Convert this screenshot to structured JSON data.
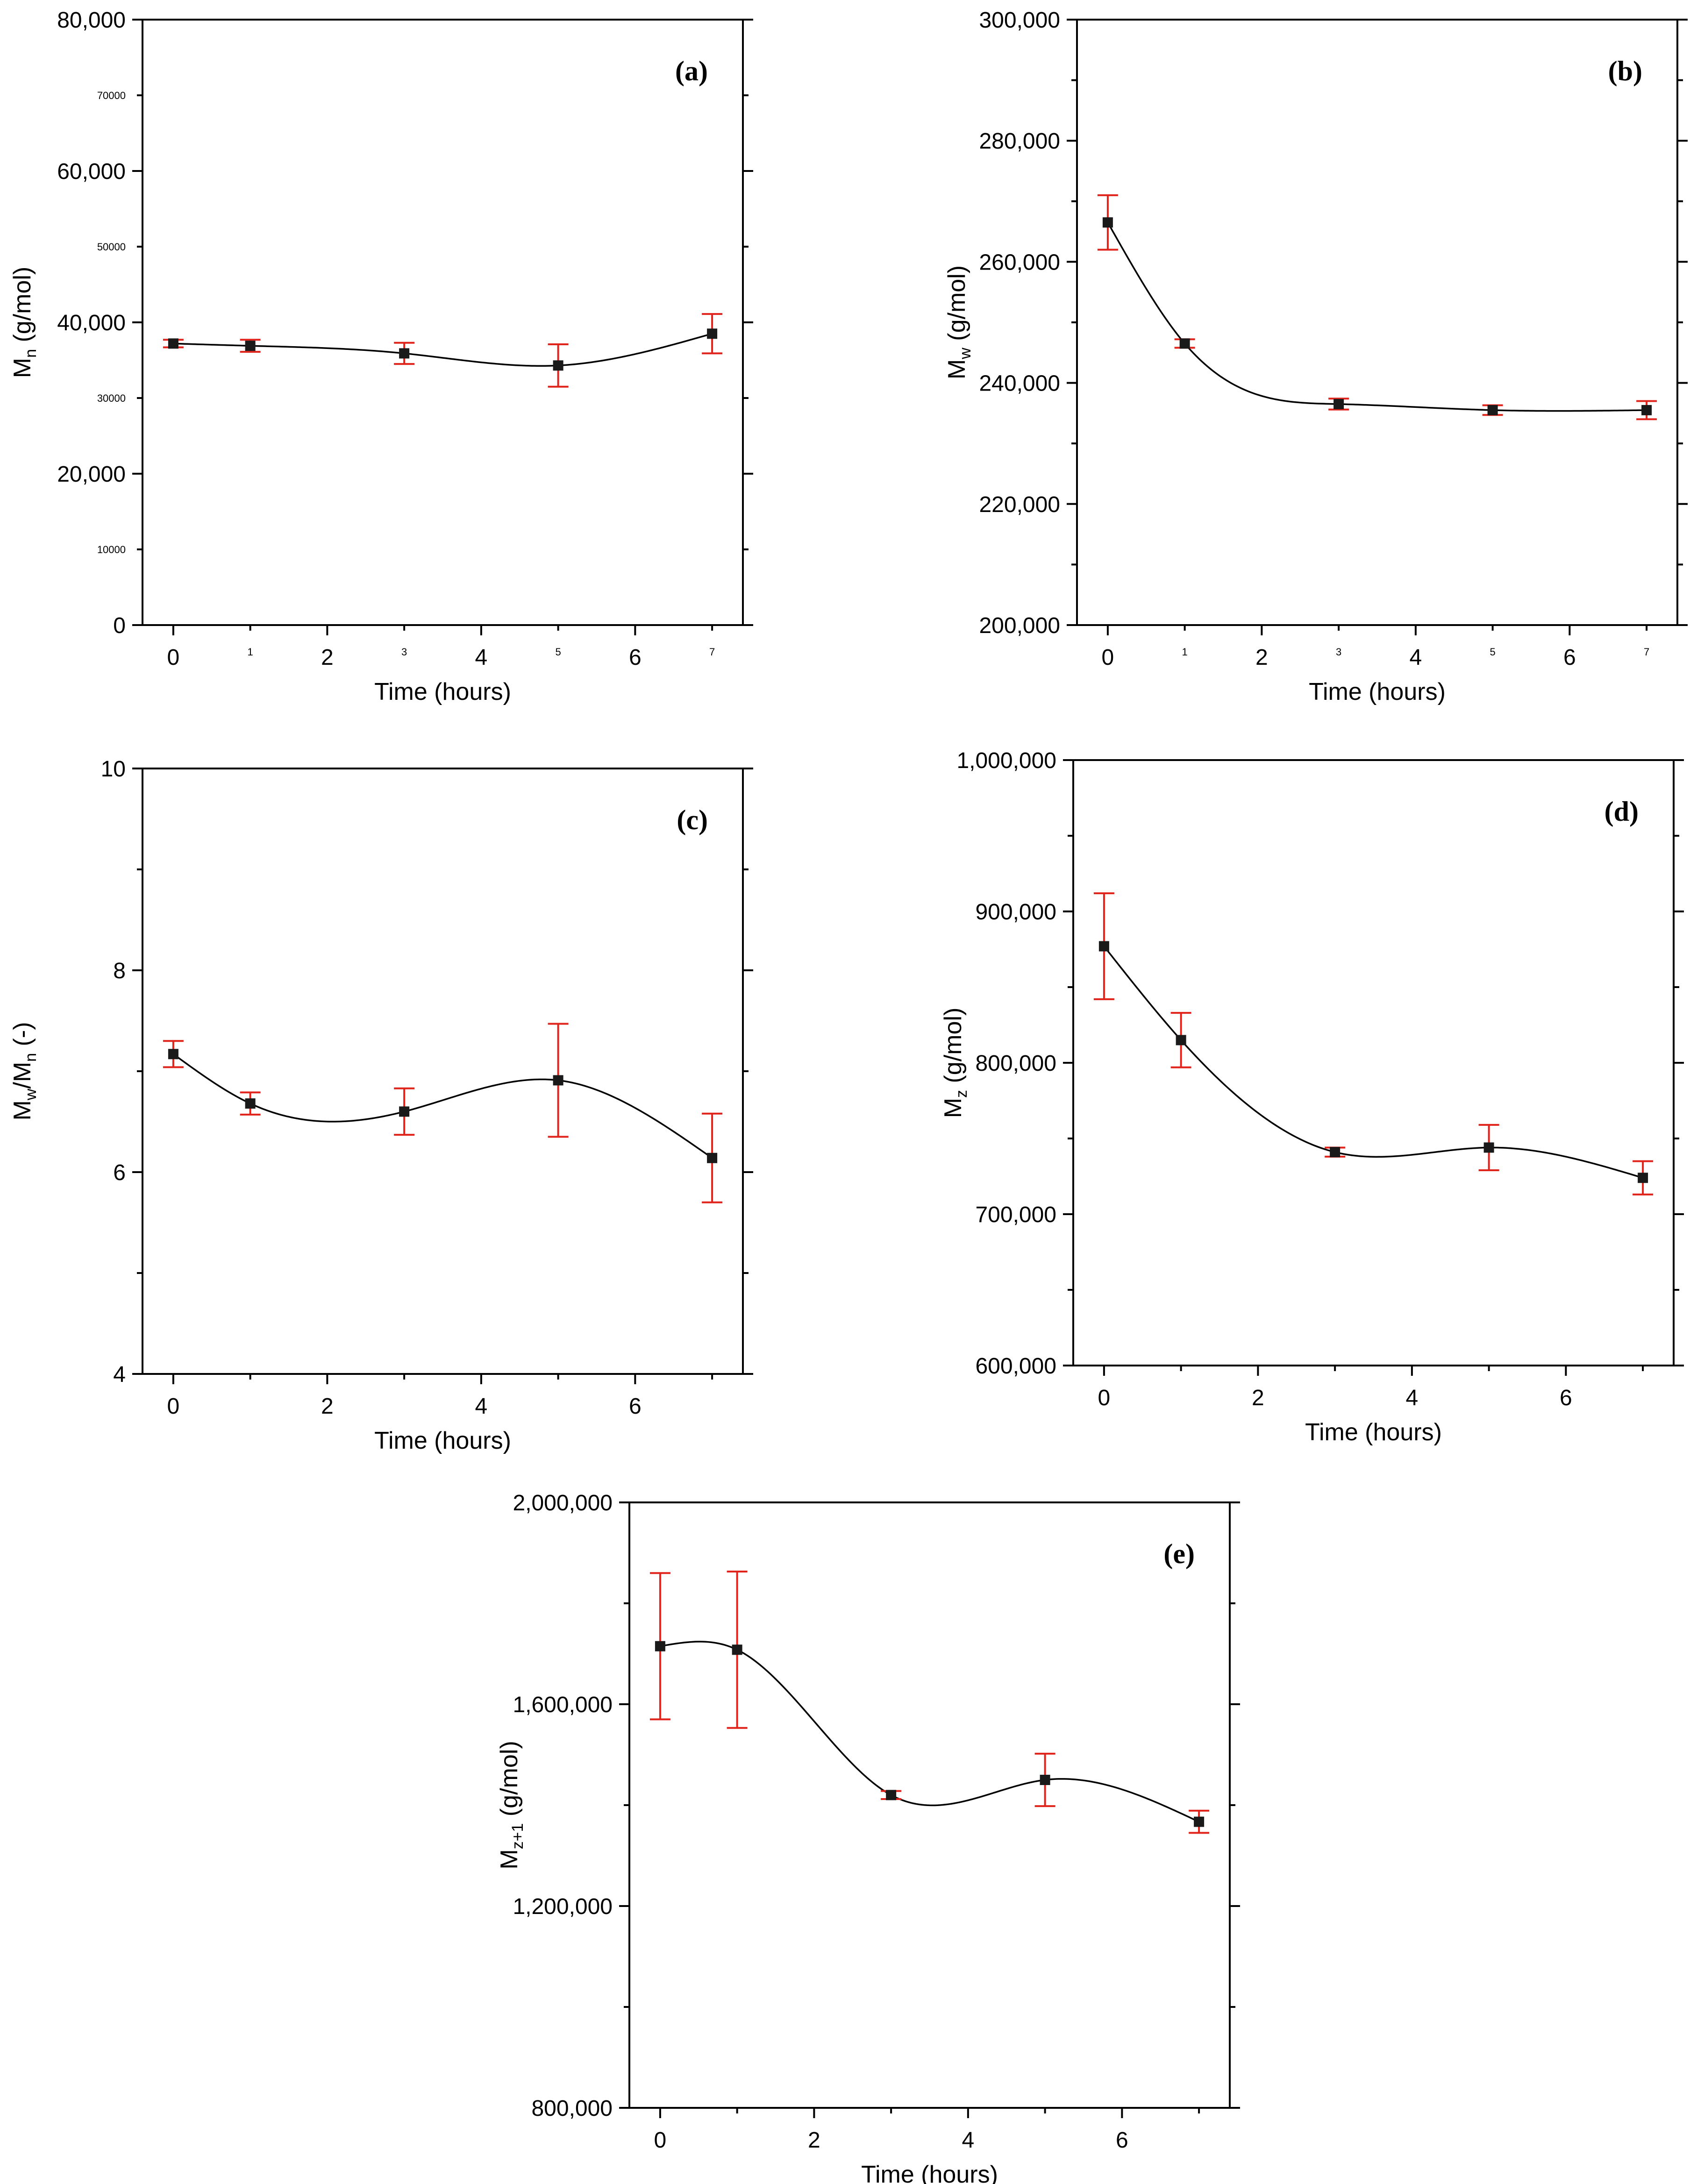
{
  "chart_data": [
    {
      "panel": "a",
      "type": "line",
      "tag": "(a)",
      "xlabel": "Time (hours)",
      "ylabel_main": "M",
      "ylabel_sub": "n",
      "ylabel_unit": " (g/mol)",
      "xlim": [
        -0.4,
        7.4
      ],
      "ylim": [
        0,
        80000
      ],
      "x_major_ticks": [
        0,
        2,
        4,
        6
      ],
      "x_major_labels": [
        "0",
        "2",
        "4",
        "6"
      ],
      "x_minor_ticks": [
        1,
        3,
        5,
        7
      ],
      "x_minor_labels": [
        "1",
        "3",
        "5",
        "7"
      ],
      "y_major_ticks": [
        0,
        20000,
        40000,
        60000,
        80000
      ],
      "y_major_labels": [
        "0",
        "20,000",
        "40,000",
        "60,000",
        "80,000"
      ],
      "y_minor_ticks": [
        10000,
        30000,
        50000,
        70000
      ],
      "y_minor_labels": [
        "10000",
        "30000",
        "50000",
        "70000"
      ],
      "x": [
        0,
        1,
        3,
        5,
        7
      ],
      "y": [
        37200,
        36900,
        35900,
        34300,
        38500
      ],
      "yerr": [
        500,
        800,
        1400,
        2800,
        2600
      ]
    },
    {
      "panel": "b",
      "type": "line",
      "tag": "(b)",
      "xlabel": "Time (hours)",
      "ylabel_main": "M",
      "ylabel_sub": "w",
      "ylabel_unit": " (g/mol)",
      "xlim": [
        -0.4,
        7.4
      ],
      "ylim": [
        200000,
        300000
      ],
      "x_major_ticks": [
        0,
        2,
        4,
        6
      ],
      "x_major_labels": [
        "0",
        "2",
        "4",
        "6"
      ],
      "x_minor_ticks": [
        1,
        3,
        5,
        7
      ],
      "x_minor_labels": [
        "1",
        "3",
        "5",
        "7"
      ],
      "y_major_ticks": [
        200000,
        220000,
        240000,
        260000,
        280000,
        300000
      ],
      "y_major_labels": [
        "200,000",
        "220,000",
        "240,000",
        "260,000",
        "280,000",
        "300,000"
      ],
      "y_minor_ticks": [
        210000,
        230000,
        250000,
        270000,
        290000
      ],
      "y_minor_labels": [],
      "x": [
        0,
        1,
        3,
        5,
        7
      ],
      "y": [
        266500,
        246500,
        236500,
        235500,
        235500
      ],
      "yerr": [
        4500,
        700,
        900,
        800,
        1500
      ]
    },
    {
      "panel": "c",
      "type": "line",
      "tag": "(c)",
      "xlabel": "Time (hours)",
      "ylabel_main": "M",
      "ylabel_sub": "w",
      "ylabel_mid": "/M",
      "ylabel_sub2": "n",
      "ylabel_unit": " (-)",
      "xlim": [
        -0.4,
        7.4
      ],
      "ylim": [
        4,
        10
      ],
      "x_major_ticks": [
        0,
        2,
        4,
        6
      ],
      "x_major_labels": [
        "0",
        "2",
        "4",
        "6"
      ],
      "x_minor_ticks": [
        1,
        3,
        5,
        7
      ],
      "x_minor_labels": [],
      "y_major_ticks": [
        4,
        6,
        8,
        10
      ],
      "y_major_labels": [
        "4",
        "6",
        "8",
        "10"
      ],
      "y_minor_ticks": [
        5,
        7,
        9
      ],
      "y_minor_labels": [],
      "x": [
        0,
        1,
        3,
        5,
        7
      ],
      "y": [
        7.17,
        6.68,
        6.6,
        6.91,
        6.14
      ],
      "yerr": [
        0.13,
        0.11,
        0.23,
        0.56,
        0.44
      ]
    },
    {
      "panel": "d",
      "type": "line",
      "tag": "(d)",
      "xlabel": "Time (hours)",
      "ylabel_main": "M",
      "ylabel_sub": "z",
      "ylabel_unit": " (g/mol)",
      "xlim": [
        -0.4,
        7.4
      ],
      "ylim": [
        600000,
        1000000
      ],
      "x_major_ticks": [
        0,
        2,
        4,
        6
      ],
      "x_major_labels": [
        "0",
        "2",
        "4",
        "6"
      ],
      "x_minor_ticks": [
        1,
        3,
        5,
        7
      ],
      "x_minor_labels": [],
      "y_major_ticks": [
        600000,
        700000,
        800000,
        900000,
        1000000
      ],
      "y_major_labels": [
        "600,000",
        "700,000",
        "800,000",
        "900,000",
        "1,000,000"
      ],
      "y_minor_ticks": [
        650000,
        750000,
        850000,
        950000
      ],
      "y_minor_labels": [],
      "x": [
        0,
        1,
        3,
        5,
        7
      ],
      "y": [
        877000,
        815000,
        741000,
        744000,
        724000
      ],
      "yerr": [
        35000,
        18000,
        3000,
        15000,
        11000
      ]
    },
    {
      "panel": "e",
      "type": "line",
      "tag": "(e)",
      "xlabel": "Time (hours)",
      "ylabel_main": "M",
      "ylabel_sub": "z+1",
      "ylabel_unit": " (g/mol)",
      "xlim": [
        -0.4,
        7.4
      ],
      "ylim": [
        800000,
        2000000
      ],
      "x_major_ticks": [
        0,
        2,
        4,
        6
      ],
      "x_major_labels": [
        "0",
        "2",
        "4",
        "6"
      ],
      "x_minor_ticks": [
        1,
        3,
        5,
        7
      ],
      "x_minor_labels": [],
      "y_major_ticks": [
        800000,
        1200000,
        1600000,
        2000000
      ],
      "y_major_labels": [
        "800,000",
        "1,200,000",
        "1,600,000",
        "2,000,000"
      ],
      "y_minor_ticks": [
        1000000,
        1400000,
        1800000
      ],
      "y_minor_labels": [],
      "x": [
        0,
        1,
        3,
        5,
        7
      ],
      "y": [
        1715000,
        1708000,
        1420000,
        1450000,
        1367000
      ],
      "yerr": [
        145000,
        155000,
        8000,
        52000,
        22000
      ]
    }
  ],
  "colors": {
    "errorbar": "#e0241c",
    "marker": "#1a1a1a",
    "curve": "#000000",
    "axis": "#000000"
  }
}
